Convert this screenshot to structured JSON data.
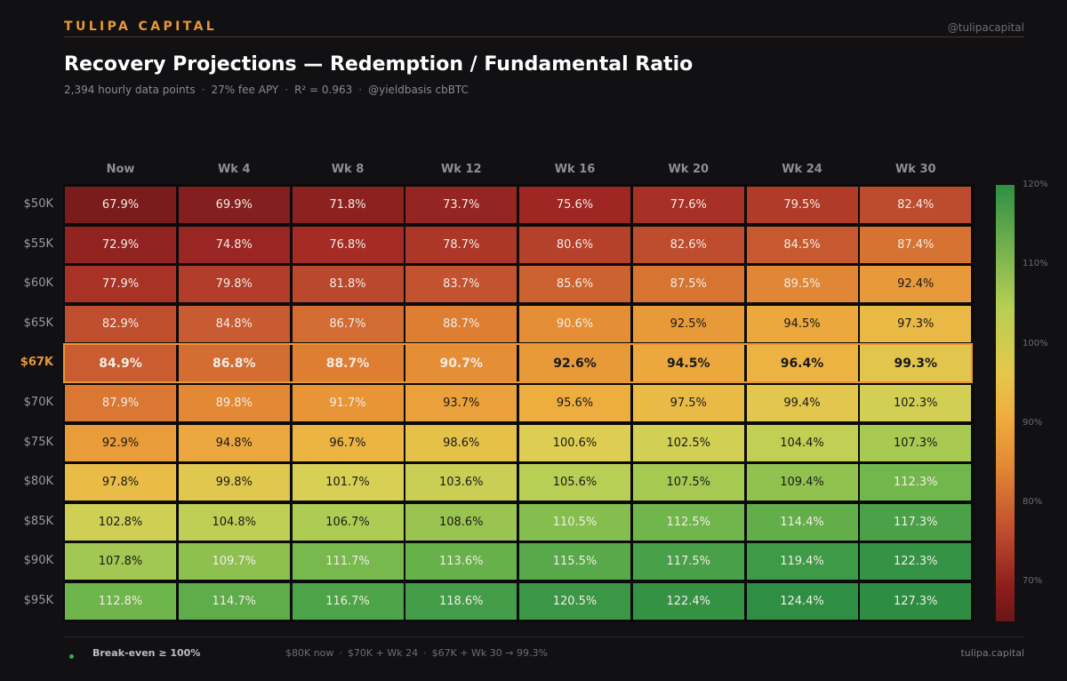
{
  "header": {
    "brand": "TULIPA CAPITAL",
    "handle": "@tulipacapital"
  },
  "title": "Recovery Projections — Redemption / Fundamental Ratio",
  "subtitle": [
    "2,394 hourly data points",
    "27% fee APY",
    "R² = 0.963",
    "@yieldbasis cbBTC"
  ],
  "subtitle_separator": "·",
  "chart_data": {
    "type": "heatmap",
    "title": "Recovery Projections — Redemption / Fundamental Ratio",
    "x_categories": [
      "Now",
      "Wk 4",
      "Wk 8",
      "Wk 12",
      "Wk 16",
      "Wk 20",
      "Wk 24",
      "Wk 30"
    ],
    "y_categories": [
      "$50K",
      "$55K",
      "$60K",
      "$65K",
      "$67K",
      "$70K",
      "$75K",
      "$80K",
      "$85K",
      "$90K",
      "$95K"
    ],
    "highlight_row": "$67K",
    "values": [
      [
        67.9,
        69.9,
        71.8,
        73.7,
        75.6,
        77.6,
        79.5,
        82.4
      ],
      [
        72.9,
        74.8,
        76.8,
        78.7,
        80.6,
        82.6,
        84.5,
        87.4
      ],
      [
        77.9,
        79.8,
        81.8,
        83.7,
        85.6,
        87.5,
        89.5,
        92.4
      ],
      [
        82.9,
        84.8,
        86.7,
        88.7,
        90.6,
        92.5,
        94.5,
        97.3
      ],
      [
        84.9,
        86.8,
        88.7,
        90.7,
        92.6,
        94.5,
        96.4,
        99.3
      ],
      [
        87.9,
        89.8,
        91.7,
        93.7,
        95.6,
        97.5,
        99.4,
        102.3
      ],
      [
        92.9,
        94.8,
        96.7,
        98.6,
        100.6,
        102.5,
        104.4,
        107.3
      ],
      [
        97.8,
        99.8,
        101.7,
        103.6,
        105.6,
        107.5,
        109.4,
        112.3
      ],
      [
        102.8,
        104.8,
        106.7,
        108.6,
        110.5,
        112.5,
        114.4,
        117.3
      ],
      [
        107.8,
        109.7,
        111.7,
        113.6,
        115.5,
        117.5,
        119.4,
        122.3
      ],
      [
        112.8,
        114.7,
        116.7,
        118.6,
        120.5,
        122.4,
        124.4,
        127.3
      ]
    ],
    "value_suffix": "%",
    "colorbar": {
      "range": [
        65,
        120
      ],
      "ticks": [
        120,
        110,
        100,
        90,
        80,
        70
      ],
      "tick_suffix": "%"
    }
  },
  "footer": {
    "legend_label": "Break-even ≥ 100%",
    "legend_color": "#3aa84f",
    "notes": [
      "$80K now",
      "$70K + Wk 24",
      "$67K + Wk 30 → 99.3%"
    ],
    "site": "tulipa.capital"
  },
  "colors": {
    "accent": "#e8963a",
    "background": "#111113"
  }
}
